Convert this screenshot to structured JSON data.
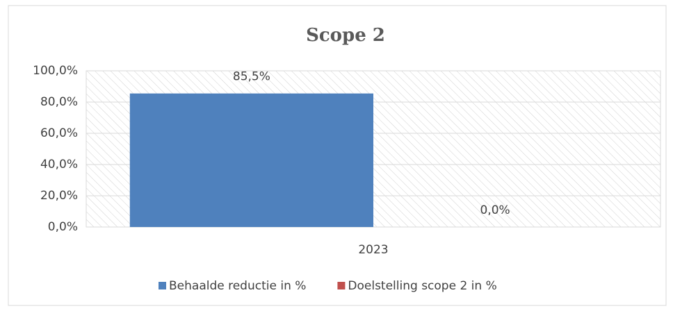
{
  "chart_data": {
    "type": "bar",
    "title": "Scope 2",
    "categories": [
      "2023"
    ],
    "series": [
      {
        "name": "Behaalde reductie in %",
        "color": "#4f81bd",
        "values": [
          85.5
        ],
        "value_labels": [
          "85,5%"
        ]
      },
      {
        "name": "Doelstelling scope 2 in %",
        "color": "#c0504d",
        "values": [
          0
        ],
        "value_labels": [
          "0,0%"
        ]
      }
    ],
    "ylim": [
      0,
      100
    ],
    "yticks": [
      {
        "value": 0,
        "label": "0,0%"
      },
      {
        "value": 20,
        "label": "20,0%"
      },
      {
        "value": 40,
        "label": "40,0%"
      },
      {
        "value": 60,
        "label": "60,0%"
      },
      {
        "value": 80,
        "label": "80,0%"
      },
      {
        "value": 100,
        "label": "100,0%"
      }
    ],
    "grid": true,
    "legend": "bottom"
  }
}
